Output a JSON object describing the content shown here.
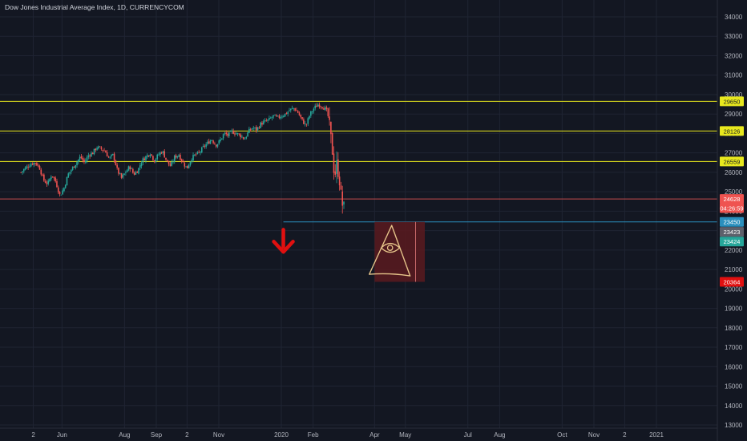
{
  "symbol_title": "Dow Jones Industrial Average Index, 1D, CURRENCYCOM",
  "colors": {
    "background": "#131722",
    "grid": "#1f2433",
    "text": "#b2b5be",
    "up_candle": "#26a69a",
    "down_candle": "#ef5350",
    "yellow_line": "#e8e81e",
    "blue_line": "#2a8fbd",
    "red_line": "#c44d4d",
    "arrow": "#e01010",
    "box_fill": "#5a1a1e",
    "eye_sketch": "#e6c48a"
  },
  "chart_data": {
    "type": "candlestick",
    "title": "Dow Jones Industrial Average Index, 1D, CURRENCYCOM",
    "ylim": [
      12600,
      34600
    ],
    "y_ticks": [
      13000,
      14000,
      15000,
      16000,
      17000,
      18000,
      19000,
      20000,
      21000,
      22000,
      23000,
      24000,
      25000,
      26000,
      27000,
      28000,
      29000,
      30000,
      31000,
      32000,
      33000,
      34000
    ],
    "x_ticks": [
      {
        "label": "2",
        "day": -118
      },
      {
        "label": "Jun",
        "day": -90
      },
      {
        "label": "Aug",
        "day": -29
      },
      {
        "label": "Sep",
        "day": 2
      },
      {
        "label": "2",
        "day": 32
      },
      {
        "label": "Nov",
        "day": 63
      },
      {
        "label": "2020",
        "day": 124
      },
      {
        "label": "Feb",
        "day": 155
      },
      {
        "label": "Apr",
        "day": 215
      },
      {
        "label": "May",
        "day": 245
      },
      {
        "label": "Jul",
        "day": 306
      },
      {
        "label": "Aug",
        "day": 337
      },
      {
        "label": "Oct",
        "day": 398
      },
      {
        "label": "Nov",
        "day": 429
      },
      {
        "label": "2",
        "day": 459
      },
      {
        "label": "2021",
        "day": 490
      }
    ],
    "price_path": [
      [
        -130,
        26000
      ],
      [
        -125,
        26250
      ],
      [
        -120,
        26450
      ],
      [
        -116,
        26500
      ],
      [
        -112,
        26250
      ],
      [
        -108,
        25600
      ],
      [
        -104,
        25400
      ],
      [
        -100,
        25900
      ],
      [
        -96,
        25500
      ],
      [
        -92,
        24800
      ],
      [
        -88,
        25200
      ],
      [
        -84,
        25900
      ],
      [
        -80,
        26200
      ],
      [
        -76,
        26500
      ],
      [
        -72,
        26800
      ],
      [
        -68,
        26500
      ],
      [
        -64,
        26900
      ],
      [
        -60,
        27000
      ],
      [
        -56,
        27300
      ],
      [
        -52,
        27200
      ],
      [
        -48,
        27100
      ],
      [
        -44,
        26700
      ],
      [
        -40,
        26900
      ],
      [
        -36,
        26100
      ],
      [
        -32,
        25700
      ],
      [
        -28,
        26000
      ],
      [
        -24,
        26300
      ],
      [
        -20,
        25900
      ],
      [
        -16,
        26100
      ],
      [
        -12,
        26600
      ],
      [
        -8,
        26800
      ],
      [
        -4,
        27000
      ],
      [
        0,
        26600
      ],
      [
        4,
        26900
      ],
      [
        8,
        27100
      ],
      [
        12,
        26600
      ],
      [
        16,
        26300
      ],
      [
        20,
        26800
      ],
      [
        24,
        26900
      ],
      [
        28,
        26500
      ],
      [
        32,
        26200
      ],
      [
        36,
        26700
      ],
      [
        40,
        26900
      ],
      [
        44,
        27000
      ],
      [
        48,
        27300
      ],
      [
        52,
        27500
      ],
      [
        56,
        27700
      ],
      [
        60,
        27400
      ],
      [
        64,
        27600
      ],
      [
        68,
        28000
      ],
      [
        72,
        27900
      ],
      [
        76,
        28100
      ],
      [
        80,
        28000
      ],
      [
        84,
        27900
      ],
      [
        88,
        27700
      ],
      [
        92,
        28100
      ],
      [
        96,
        28300
      ],
      [
        100,
        28200
      ],
      [
        104,
        28500
      ],
      [
        108,
        28600
      ],
      [
        112,
        28700
      ],
      [
        116,
        28900
      ],
      [
        120,
        28800
      ],
      [
        124,
        28900
      ],
      [
        128,
        29000
      ],
      [
        132,
        29200
      ],
      [
        136,
        29300
      ],
      [
        140,
        29100
      ],
      [
        144,
        28700
      ],
      [
        148,
        28400
      ],
      [
        152,
        29000
      ],
      [
        156,
        29300
      ],
      [
        160,
        29500
      ],
      [
        164,
        29400
      ],
      [
        168,
        29200
      ],
      [
        170,
        28800
      ],
      [
        172,
        27900
      ],
      [
        174,
        27000
      ],
      [
        175,
        26300
      ],
      [
        176,
        25800
      ],
      [
        178,
        26400
      ],
      [
        180,
        25900
      ],
      [
        181,
        25500
      ],
      [
        183,
        24400
      ],
      [
        185,
        24200
      ],
      [
        186,
        23500
      ]
    ],
    "horizontal_levels": [
      {
        "value": 29650,
        "label": "29650",
        "color": "#e8e81e"
      },
      {
        "value": 28126,
        "label": "28126",
        "color": "#e8e81e"
      },
      {
        "value": 26559,
        "label": "26559",
        "color": "#e8e81e"
      },
      {
        "value": 24628,
        "label": "24628",
        "color": "#c44d4d"
      },
      {
        "value": 23450,
        "label": "23450",
        "color": "#2a8fbd"
      }
    ],
    "price_labels": [
      {
        "value": 29650,
        "label": "29650",
        "bg": "#e8e81e",
        "fg": "#131722"
      },
      {
        "value": 28126,
        "label": "28126",
        "bg": "#e8e81e",
        "fg": "#131722"
      },
      {
        "value": 26559,
        "label": "26559",
        "bg": "#e8e81e",
        "fg": "#131722"
      },
      {
        "value": 24628,
        "label": "24628",
        "bg": "#ef5350",
        "fg": "#ffffff"
      },
      {
        "value": 24160,
        "label": "04:26:59",
        "bg": "#ef5350",
        "fg": "#ffffff"
      },
      {
        "value": 23450,
        "label": "23450",
        "bg": "#2a8fbd",
        "fg": "#ffffff"
      },
      {
        "value": 22940,
        "label": "23423",
        "bg": "#5d606b",
        "fg": "#ffffff"
      },
      {
        "value": 22440,
        "label": "23424",
        "bg": "#26a69a",
        "fg": "#ffffff"
      },
      {
        "value": 20364,
        "label": "20364",
        "bg": "#e01010",
        "fg": "#ffffff"
      }
    ],
    "target_box": {
      "day_start": 215,
      "day_end": 264,
      "value_top": 23450,
      "value_bottom": 20364,
      "marker_day": 255
    },
    "down_arrow": {
      "day": 126,
      "value_top": 23050,
      "value_bottom": 21900
    }
  }
}
